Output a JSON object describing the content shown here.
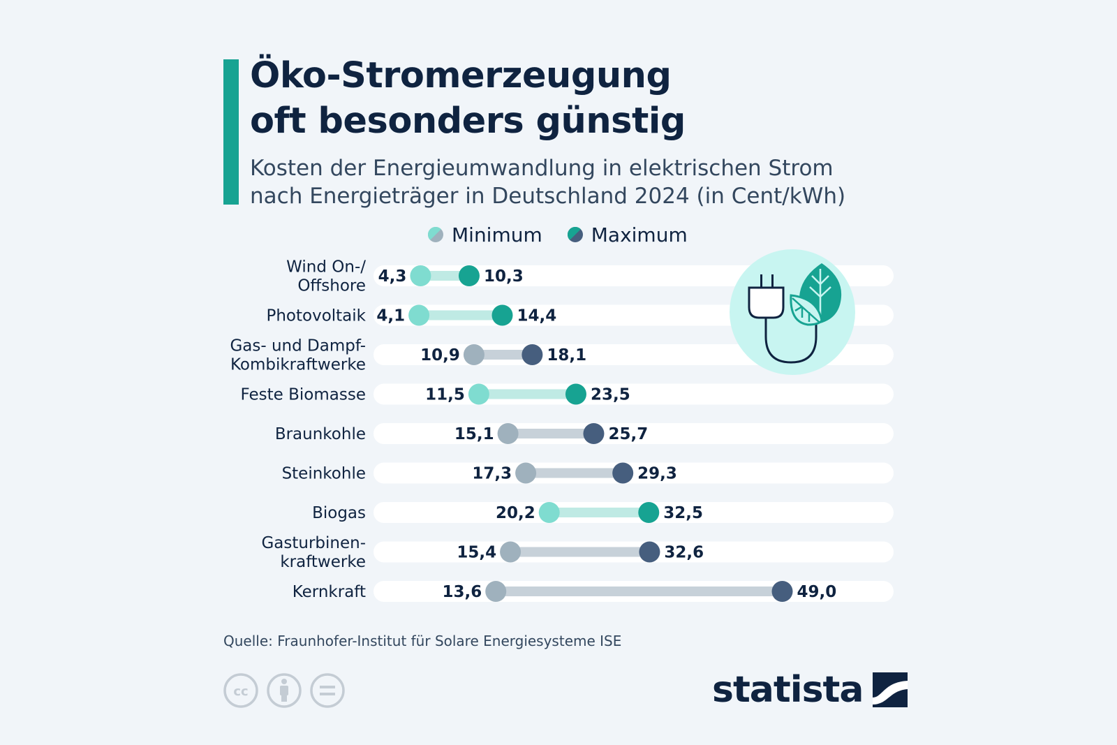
{
  "header": {
    "title_line1": "Öko-Stromerzeugung",
    "title_line2": "oft besonders günstig",
    "subtitle_line1": "Kosten der Energieumwandlung in elektrischen Strom",
    "subtitle_line2": "nach Energieträger in Deutschland 2024 (in Cent/kWh)"
  },
  "legend": {
    "min_label": "Minimum",
    "max_label": "Maximum"
  },
  "colors": {
    "accent": "#17a392",
    "eco_min": "#7fdcd0",
    "eco_max": "#17a392",
    "eco_line": "#bfeae4",
    "fossil_min": "#9fb1bd",
    "fossil_max": "#465e7e",
    "fossil_line": "#c7d1d9",
    "row_bg": "#ffffff",
    "text": "#0f2340"
  },
  "chart_data": {
    "type": "dumbbell",
    "unit": "Cent/kWh",
    "xlim": [
      0,
      50
    ],
    "categories": [
      [
        "Wind On-/",
        "Offshore"
      ],
      [
        "Photovoltaik"
      ],
      [
        "Gas- und Dampf-",
        "Kombikraftwerke"
      ],
      [
        "Feste Biomasse"
      ],
      [
        "Braunkohle"
      ],
      [
        "Steinkohle"
      ],
      [
        "Biogas"
      ],
      [
        "Gasturbinen-",
        "kraftwerke"
      ],
      [
        "Kernkraft"
      ]
    ],
    "series": [
      {
        "name": "Minimum",
        "values": [
          4.3,
          4.1,
          10.9,
          11.5,
          15.1,
          17.3,
          20.2,
          15.4,
          13.6
        ],
        "labels": [
          "4,3",
          "4,1",
          "10,9",
          "11,5",
          "15,1",
          "17,3",
          "20,2",
          "15,4",
          "13,6"
        ]
      },
      {
        "name": "Maximum",
        "values": [
          10.3,
          14.4,
          18.1,
          23.5,
          25.7,
          29.3,
          32.5,
          32.6,
          49.0
        ],
        "labels": [
          "10,3",
          "14,4",
          "18,1",
          "23,5",
          "25,7",
          "29,3",
          "32,5",
          "32,6",
          "49,0"
        ]
      }
    ],
    "renewable": [
      true,
      true,
      false,
      true,
      false,
      false,
      true,
      false,
      false
    ]
  },
  "icons": {
    "eco": "plug-leaf-icon",
    "cc": "creative-commons-icon",
    "by": "attribution-icon",
    "nd": "no-derivatives-icon",
    "brand": "statista-logo-icon"
  },
  "footer": {
    "source": "Quelle: Fraunhofer-Institut für Solare Energiesysteme ISE",
    "brand": "statista",
    "cc_text": "cc"
  }
}
